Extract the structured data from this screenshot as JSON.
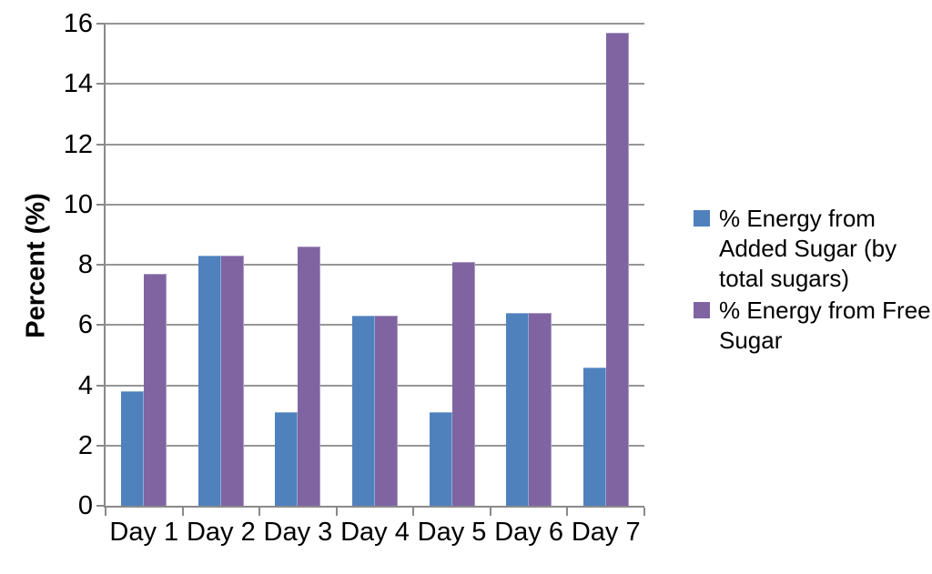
{
  "chart_data": {
    "type": "bar",
    "title": "",
    "xlabel": "",
    "ylabel": "Percent (%)",
    "categories": [
      "Day 1",
      "Day 2",
      "Day 3",
      "Day 4",
      "Day 5",
      "Day 6",
      "Day 7"
    ],
    "series": [
      {
        "name": "% Energy from Added Sugar (by total sugars)",
        "color": "#4f81bd",
        "values": [
          3.8,
          8.3,
          3.1,
          6.3,
          3.1,
          6.4,
          4.6
        ]
      },
      {
        "name": "% Energy from Free Sugar",
        "color": "#8064a2",
        "values": [
          7.7,
          8.3,
          8.6,
          6.3,
          8.1,
          6.4,
          15.7
        ]
      }
    ],
    "ylim": [
      0,
      16
    ],
    "ytick_step": 2,
    "grid": true,
    "legend_position": "right",
    "gridline_color": "#969696",
    "axis_color": "#898989",
    "text_color": "#000000",
    "background": "#ffffff"
  }
}
